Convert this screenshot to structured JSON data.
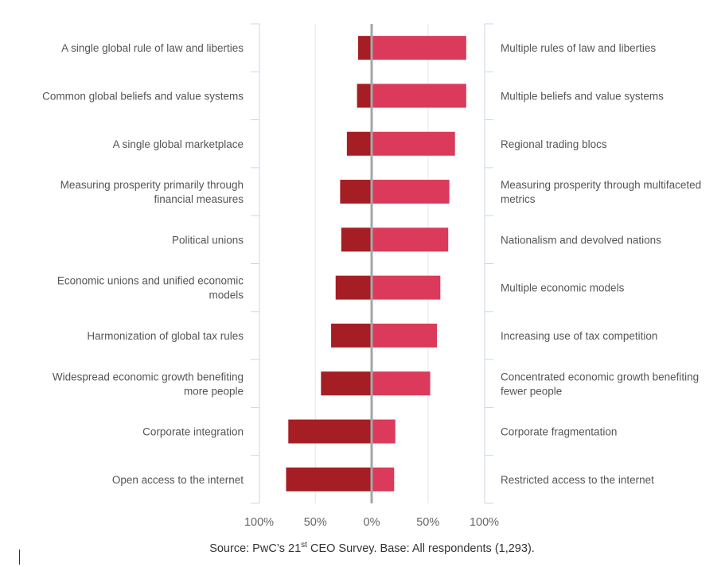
{
  "chart_data": {
    "type": "bar",
    "orientation": "horizontal-diverging",
    "left_labels": [
      "A single global rule of law and liberties",
      "Common global beliefs and value systems",
      "A single global marketplace",
      "Measuring prosperity primarily through financial measures",
      "Political unions",
      "Economic unions and unified economic models",
      "Harmonization of global tax rules",
      "Widespread economic growth benefiting more people",
      "Corporate integration",
      "Open access to the internet"
    ],
    "right_labels": [
      "Multiple rules of law and liberties",
      "Multiple beliefs and value systems",
      "Regional trading blocs",
      "Measuring prosperity through multifaceted metrics",
      "Nationalism and devolved nations",
      "Multiple economic models",
      "Increasing use of tax competition",
      "Concentrated economic growth benefiting fewer people",
      "Corporate fragmentation",
      "Restricted access to the internet"
    ],
    "series": [
      {
        "values": [
          12,
          13,
          22,
          28,
          27,
          32,
          36,
          45,
          74,
          76
        ],
        "color": "#a51e24"
      },
      {
        "values": [
          84,
          84,
          74,
          69,
          68,
          61,
          58,
          52,
          21,
          20
        ],
        "color": "#db3a5a"
      }
    ],
    "xlim": [
      -100,
      100
    ],
    "ticks": [
      "100%",
      "50%",
      "0%",
      "50%",
      "100%"
    ],
    "grid": true
  },
  "source": {
    "prefix": "Source: PwC’s 21",
    "sup": "st",
    "suffix": " CEO Survey. Base: All respondents (1,293)."
  }
}
